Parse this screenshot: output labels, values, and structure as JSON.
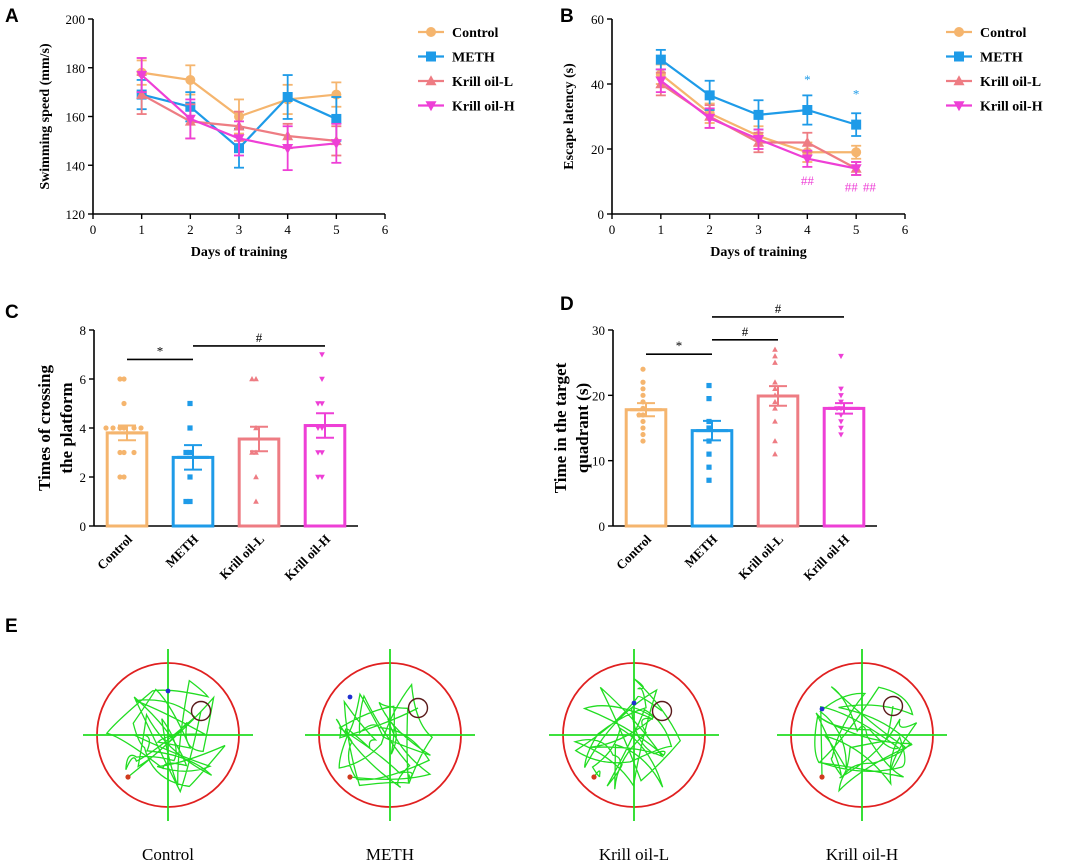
{
  "colors": {
    "Control": "#F5B56E",
    "METH": "#1E9BE8",
    "Krill oil-L": "#EE7C83",
    "Krill oil-H": "#EE3FD6",
    "axis": "#000000",
    "maze_circle": "#E02020",
    "maze_path": "#22DD22",
    "platform": "#5A1A1A"
  },
  "chart_data": [
    {
      "id": "A",
      "panel_label": "A",
      "type": "line",
      "xlabel": "Days of training",
      "ylabel": "Swimming speed (mm/s)",
      "xlim": [
        0,
        6
      ],
      "ylim": [
        120,
        200
      ],
      "xticks": [
        "0",
        "1",
        "2",
        "3",
        "4",
        "5",
        "6"
      ],
      "yticks": [
        "120",
        "140",
        "160",
        "180",
        "200"
      ],
      "x": [
        1,
        2,
        3,
        4,
        5
      ],
      "legend": [
        "Control",
        "METH",
        "Krill oil-L",
        "Krill oil-H"
      ],
      "series": [
        {
          "name": "Control",
          "marker": "circle",
          "values": [
            178,
            175,
            160,
            167,
            169
          ],
          "err": [
            5,
            6,
            7,
            6,
            5
          ]
        },
        {
          "name": "METH",
          "marker": "square",
          "values": [
            169,
            164,
            147,
            168,
            159
          ],
          "err": [
            6,
            6,
            8,
            9,
            9
          ]
        },
        {
          "name": "Krill oil-L",
          "marker": "triangle-up",
          "values": [
            169,
            158,
            156,
            152,
            150
          ],
          "err": [
            8,
            7,
            6,
            5,
            6
          ]
        },
        {
          "name": "Krill oil-H",
          "marker": "triangle-down",
          "values": [
            177,
            159,
            151,
            147,
            149
          ],
          "err": [
            7,
            8,
            7,
            9,
            8
          ]
        }
      ],
      "annotations": []
    },
    {
      "id": "B",
      "panel_label": "B",
      "type": "line",
      "xlabel": "Days of training",
      "ylabel": "Escape latency (s)",
      "xlim": [
        0,
        6
      ],
      "ylim": [
        0,
        60
      ],
      "xticks": [
        "0",
        "1",
        "2",
        "3",
        "4",
        "5",
        "6"
      ],
      "yticks": [
        "0",
        "20",
        "40",
        "60"
      ],
      "x": [
        1,
        2,
        3,
        4,
        5
      ],
      "legend": [
        "Control",
        "METH",
        "Krill oil-L",
        "Krill oil-H"
      ],
      "series": [
        {
          "name": "Control",
          "marker": "circle",
          "values": [
            43,
            31,
            24,
            19,
            19
          ],
          "err": [
            3,
            3,
            3,
            3,
            2
          ]
        },
        {
          "name": "METH",
          "marker": "square",
          "values": [
            47.5,
            36.5,
            30.5,
            32,
            27.5
          ],
          "err": [
            3,
            4.5,
            4.5,
            4.5,
            3.5
          ]
        },
        {
          "name": "Krill oil-L",
          "marker": "triangle-up",
          "values": [
            40,
            30,
            22,
            22,
            14
          ],
          "err": [
            3.5,
            3.5,
            3,
            3,
            2
          ]
        },
        {
          "name": "Krill oil-H",
          "marker": "triangle-down",
          "values": [
            41,
            29.5,
            23,
            17,
            14
          ],
          "err": [
            3.5,
            3,
            3,
            2.5,
            2
          ]
        }
      ],
      "annotations": [
        {
          "text": "*",
          "x": 4,
          "y": 40,
          "color": "METH"
        },
        {
          "text": "*",
          "x": 5,
          "y": 35.5,
          "color": "METH"
        },
        {
          "text": "##",
          "x": 4,
          "y": 9,
          "color": "Krill oil-H"
        },
        {
          "text": "##",
          "x": 4.9,
          "y": 7,
          "color": "Krill oil-H"
        },
        {
          "text": "##",
          "x": 5.27,
          "y": 7,
          "color": "Krill oil-H"
        }
      ]
    },
    {
      "id": "C",
      "panel_label": "C",
      "type": "bar",
      "ylabel": "Times of crossing\nthe platform",
      "categories": [
        "Control",
        "METH",
        "Krill oil-L",
        "Krill oil-H"
      ],
      "ylim": [
        0,
        8
      ],
      "yticks": [
        "0",
        "2",
        "4",
        "6",
        "8"
      ],
      "values": [
        3.8,
        2.8,
        3.55,
        4.1
      ],
      "err": [
        0.3,
        0.5,
        0.5,
        0.5
      ],
      "points": [
        [
          6,
          6,
          5,
          4,
          4,
          4,
          4,
          4,
          4,
          3,
          3,
          3,
          2,
          2
        ],
        [
          5,
          4,
          3,
          3,
          2,
          1,
          1
        ],
        [
          6,
          6,
          4,
          3,
          3,
          2,
          1
        ],
        [
          7,
          6,
          5,
          5,
          4,
          4,
          3,
          3,
          2,
          2
        ]
      ],
      "markers": [
        "circle",
        "square",
        "triangle-up",
        "triangle-down"
      ],
      "brackets": [
        {
          "from": 0,
          "to": 1,
          "y": 6.8,
          "text": "*"
        },
        {
          "from": 1,
          "to": 3,
          "y": 7.35,
          "text": "#"
        }
      ]
    },
    {
      "id": "D",
      "panel_label": "D",
      "type": "bar",
      "ylabel": "Time in the target\nquadrant (s)",
      "categories": [
        "Control",
        "METH",
        "Krill oil-L",
        "Krill oil-H"
      ],
      "ylim": [
        0,
        30
      ],
      "yticks": [
        "0",
        "10",
        "20",
        "30"
      ],
      "values": [
        17.8,
        14.6,
        19.9,
        18.0
      ],
      "err": [
        1.0,
        1.5,
        1.5,
        0.8
      ],
      "points": [
        [
          24,
          22,
          21,
          20,
          19,
          18,
          17,
          17,
          16,
          15,
          14,
          13
        ],
        [
          21.5,
          19.5,
          16,
          15,
          13,
          11,
          9,
          7
        ],
        [
          27,
          26,
          25,
          22,
          21,
          20,
          19,
          18,
          16,
          13,
          11
        ],
        [
          26,
          21,
          20,
          19,
          18,
          18,
          17,
          16,
          15,
          14
        ]
      ],
      "markers": [
        "circle",
        "square",
        "triangle-up",
        "triangle-down"
      ],
      "brackets": [
        {
          "from": 0,
          "to": 1,
          "y": 26.3,
          "text": "*"
        },
        {
          "from": 1,
          "to": 2,
          "y": 28.5,
          "text": "#"
        },
        {
          "from": 1,
          "to": 3,
          "y": 32,
          "text": "#"
        }
      ]
    }
  ],
  "panel_e": {
    "panel_label": "E",
    "mazes": [
      {
        "label": "Control"
      },
      {
        "label": "METH"
      },
      {
        "label": "Krill oil-L"
      },
      {
        "label": "Krill oil-H"
      }
    ]
  }
}
